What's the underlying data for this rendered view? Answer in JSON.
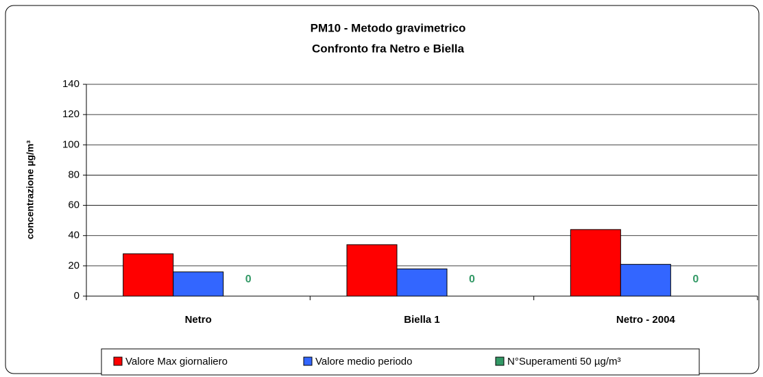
{
  "chart_data": {
    "type": "bar",
    "title": [
      "PM10 - Metodo gravimetrico",
      "Confronto fra Netro e Biella"
    ],
    "y_label": "concentrazione µg/m³",
    "categories": [
      "Netro",
      "Biella 1",
      "Netro - 2004"
    ],
    "series": [
      {
        "name": "Valore Max giornaliero",
        "color": "#ff0000",
        "values": [
          28,
          34,
          44
        ]
      },
      {
        "name": "Valore medio periodo",
        "color": "#3366ff",
        "values": [
          16,
          18,
          21
        ]
      },
      {
        "name": "N°Superamenti 50 µg/m³",
        "color": "#339966",
        "values": [
          0,
          0,
          0
        ],
        "data_labels": true
      }
    ],
    "ylim": [
      0,
      140
    ],
    "yticks": [
      0,
      20,
      40,
      60,
      80,
      100,
      120,
      140
    ],
    "grid": true,
    "legend": "bottom"
  }
}
